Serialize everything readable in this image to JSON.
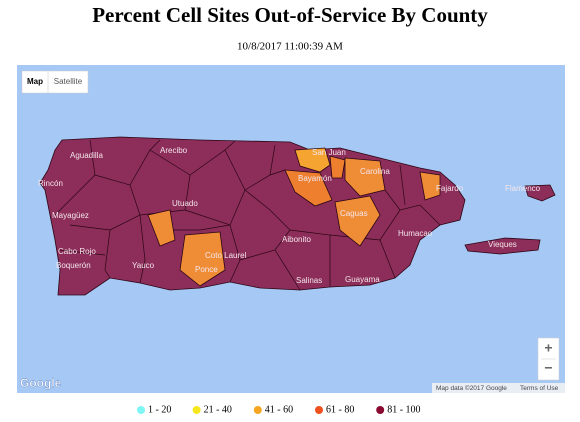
{
  "header": {
    "title": "Percent Cell Sites Out-of-Service By County",
    "timestamp": "10/8/2017 11:00:39 AM"
  },
  "map": {
    "controls": {
      "map": "Map",
      "satellite": "Satellite",
      "zoom_in": "+",
      "zoom_out": "−"
    },
    "labels": [
      "Aguadilla",
      "Arecibo",
      "Rincón",
      "Mayagüez",
      "Cabo Rojo",
      "Boquerón",
      "Utuado",
      "Ponce",
      "Coto Laurel",
      "Yauco",
      "San Juan",
      "Bayamón",
      "Carolina",
      "Caguas",
      "Fajardo",
      "Humacao",
      "Guayama",
      "Salinas",
      "Aibonito",
      "Flamenco",
      "Vieques"
    ],
    "attribution": {
      "logo": "Google",
      "data": "Map data ©2017 Google",
      "terms": "Terms of Use"
    }
  },
  "legend": [
    {
      "label": "1 - 20",
      "color": "#7ff5f5"
    },
    {
      "label": "21 - 40",
      "color": "#f5e61e"
    },
    {
      "label": "41 - 60",
      "color": "#f5a623"
    },
    {
      "label": "61 - 80",
      "color": "#f0501e"
    },
    {
      "label": "81 - 100",
      "color": "#8b0a32"
    }
  ]
}
